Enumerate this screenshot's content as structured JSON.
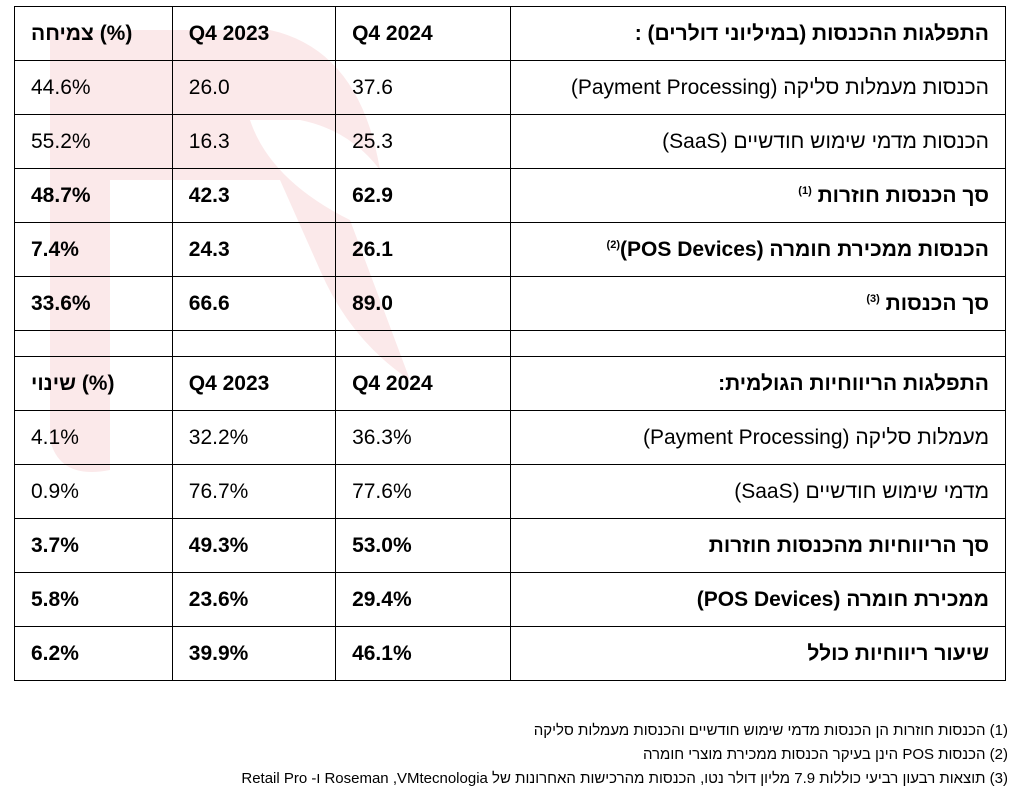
{
  "colors": {
    "watermark": "#fbe9ea"
  },
  "revenue": {
    "header": {
      "label": "התפלגות ההכנסות (במיליוני דולרים) :",
      "col1": "Q4 2024",
      "col2": "Q4 2023",
      "col3": "צמיחה (%)"
    },
    "rows": [
      {
        "label": "הכנסות מעמלות סליקה (Payment Processing)",
        "note": "",
        "v2024": "37.6",
        "v2023": "26.0",
        "change": "44.6%"
      },
      {
        "label": "הכנסות מדמי שימוש חודשיים (SaaS)",
        "note": "",
        "v2024": "25.3",
        "v2023": "16.3",
        "change": "55.2%"
      },
      {
        "label": "סך הכנסות חוזרות",
        "note": "(1)",
        "v2024": "62.9",
        "v2023": "42.3",
        "change": "48.7%"
      },
      {
        "label": "הכנסות ממכירת חומרה (POS Devices)",
        "note": "(2)",
        "v2024": "26.1",
        "v2023": "24.3",
        "change": "7.4%"
      },
      {
        "label": "סך הכנסות",
        "note": "(3)",
        "v2024": "89.0",
        "v2023": "66.6",
        "change": "33.6%"
      }
    ]
  },
  "gross": {
    "header": {
      "label": "התפלגות הריווחיות הגולמית:",
      "col1": "Q4 2024",
      "col2": "Q4 2023",
      "col3": "שינוי (%)"
    },
    "rows": [
      {
        "label": "מעמלות סליקה (Payment Processing)",
        "v2024": "36.3%",
        "v2023": "32.2%",
        "change": "4.1%"
      },
      {
        "label": "מדמי שימוש חודשיים (SaaS)",
        "v2024": "77.6%",
        "v2023": "76.7%",
        "change": "0.9%"
      },
      {
        "label": "סך הריווחיות מהכנסות חוזרות",
        "v2024": "53.0%",
        "v2023": "49.3%",
        "change": "3.7%"
      },
      {
        "label": "ממכירת חומרה (POS Devices)",
        "v2024": "29.4%",
        "v2023": "23.6%",
        "change": "5.8%"
      },
      {
        "label": "שיעור ריווחיות כולל",
        "v2024": "46.1%",
        "v2023": "39.9%",
        "change": "6.2%"
      }
    ]
  },
  "footnotes": [
    "(1) הכנסות חוזרות הן הכנסות מדמי שימוש חודשיים והכנסות מעמלות סליקה",
    "(2) הכנסות POS הינן בעיקר הכנסות ממכירת מוצרי חומרה",
    "(3) תוצאות רבעון רביעי כוללות 7.9 מליון דולר נטו, הכנסות מהרכישות האחרונות של Roseman ,VMtecnologia ו- Retail Pro"
  ]
}
